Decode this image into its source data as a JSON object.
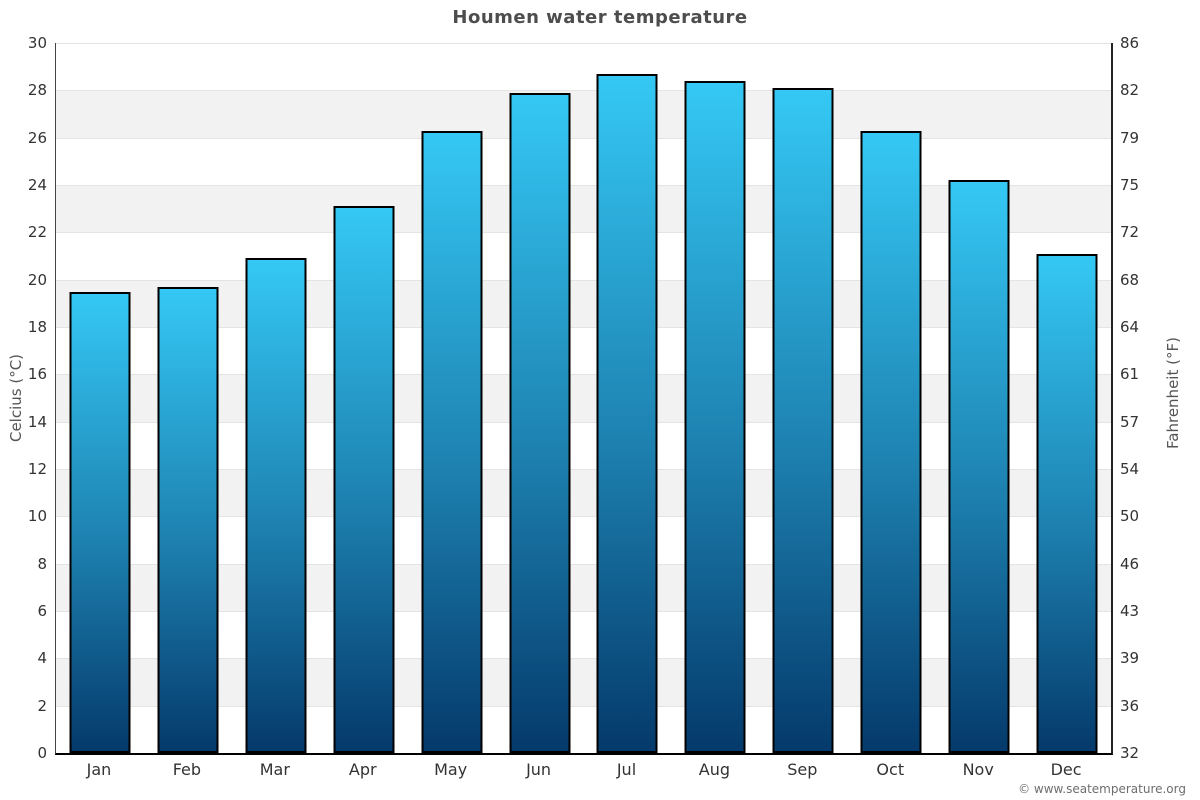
{
  "chart_data": {
    "type": "bar",
    "title": "Houmen water temperature",
    "categories": [
      "Jan",
      "Feb",
      "Mar",
      "Apr",
      "May",
      "Jun",
      "Jul",
      "Aug",
      "Sep",
      "Oct",
      "Nov",
      "Dec"
    ],
    "values": [
      19.5,
      19.7,
      20.9,
      23.1,
      26.3,
      27.9,
      28.7,
      28.4,
      28.1,
      26.3,
      24.2,
      21.1
    ],
    "unit": "°C",
    "xlabel": "",
    "ylabel_left": "Celcius (°C)",
    "ylabel_right": "Fahrenheit (°F)",
    "ylim": [
      0,
      30
    ],
    "yticks_celsius": [
      30,
      28,
      26,
      24,
      22,
      20,
      18,
      16,
      14,
      12,
      10,
      8,
      6,
      4,
      2,
      0
    ],
    "yticks_fahrenheit": [
      86,
      82,
      79,
      75,
      72,
      68,
      64,
      61,
      57,
      54,
      50,
      46,
      43,
      39,
      36,
      32
    ],
    "grid": "horizontal alternating bands, gridline every 2°C",
    "legend": "none",
    "colors": {
      "bar_gradient_top": "#35c8f4",
      "bar_gradient_bottom": "#043a6b",
      "bar_border": "#000000",
      "band_gray": "#f2f2f2",
      "gridline": "#e4e4e4",
      "title_text": "#4d4d4d",
      "tick_text": "#333333",
      "axis_title_text": "#555555",
      "credit_text": "#6e6e6e"
    }
  },
  "footer": {
    "credit": "© www.seatemperature.org"
  }
}
